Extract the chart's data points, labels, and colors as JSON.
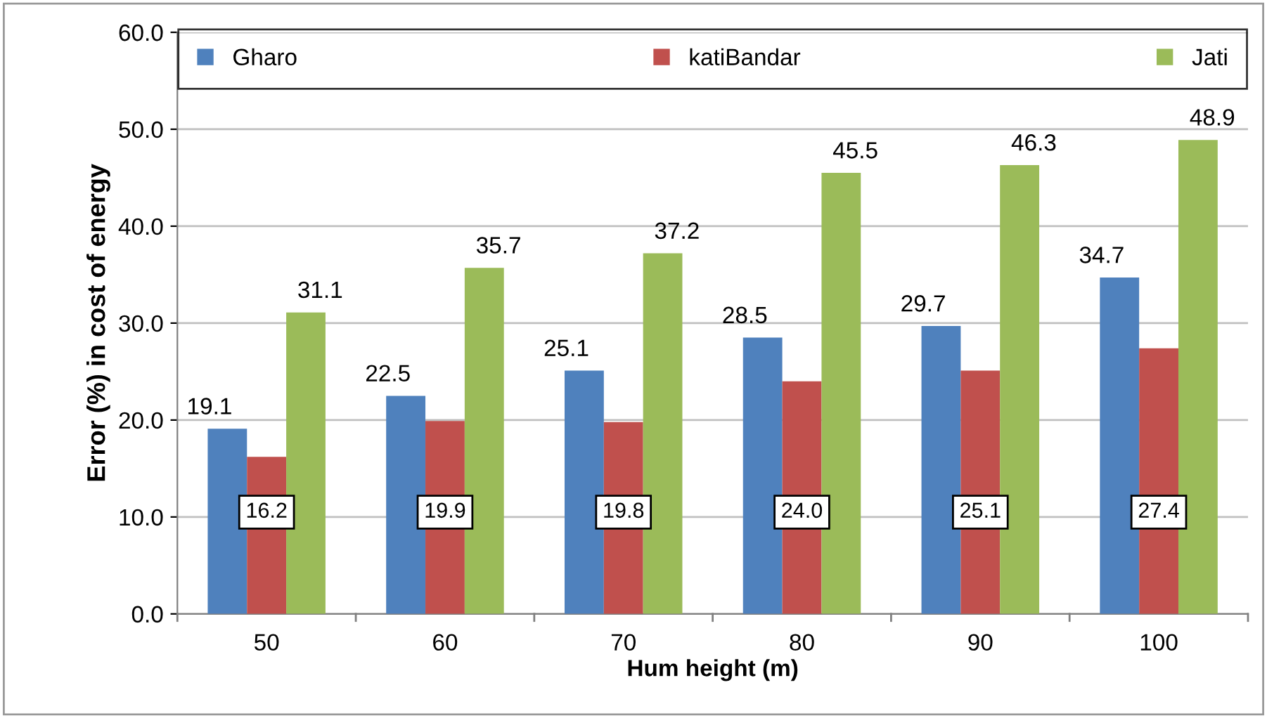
{
  "chart_data": {
    "type": "bar",
    "xlabel": "Hum height (m)",
    "ylabel": "Error (%) in cost of energy",
    "categories": [
      "50",
      "60",
      "70",
      "80",
      "90",
      "100"
    ],
    "series": [
      {
        "name": "Gharo",
        "color": "#4f81bd",
        "values": [
          19.1,
          22.5,
          25.1,
          28.5,
          29.7,
          34.7
        ],
        "value_labels": [
          "19.1",
          "22.5",
          "25.1",
          "28.5",
          "29.7",
          "34.7"
        ]
      },
      {
        "name": "katiBandar",
        "color": "#c0504d",
        "values": [
          16.2,
          19.9,
          19.8,
          24.0,
          25.1,
          27.4
        ],
        "value_labels": [
          "16.2",
          "19.9",
          "19.8",
          "24.0",
          "25.1",
          "27.4"
        ]
      },
      {
        "name": "Jati",
        "color": "#9bbb59",
        "values": [
          31.1,
          35.7,
          37.2,
          45.5,
          46.3,
          48.9
        ],
        "value_labels": [
          "31.1",
          "35.7",
          "37.2",
          "45.5",
          "46.3",
          "48.9"
        ]
      }
    ],
    "ylim": [
      0,
      60
    ],
    "yticks": [
      {
        "value": 0,
        "label": "0.0"
      },
      {
        "value": 10,
        "label": "10.0"
      },
      {
        "value": 20,
        "label": "20.0"
      },
      {
        "value": 30,
        "label": "30.0"
      },
      {
        "value": 40,
        "label": "40.0"
      },
      {
        "value": 50,
        "label": "50.0"
      },
      {
        "value": 60,
        "label": "60.0"
      }
    ],
    "grid": "y",
    "legend": "top"
  }
}
